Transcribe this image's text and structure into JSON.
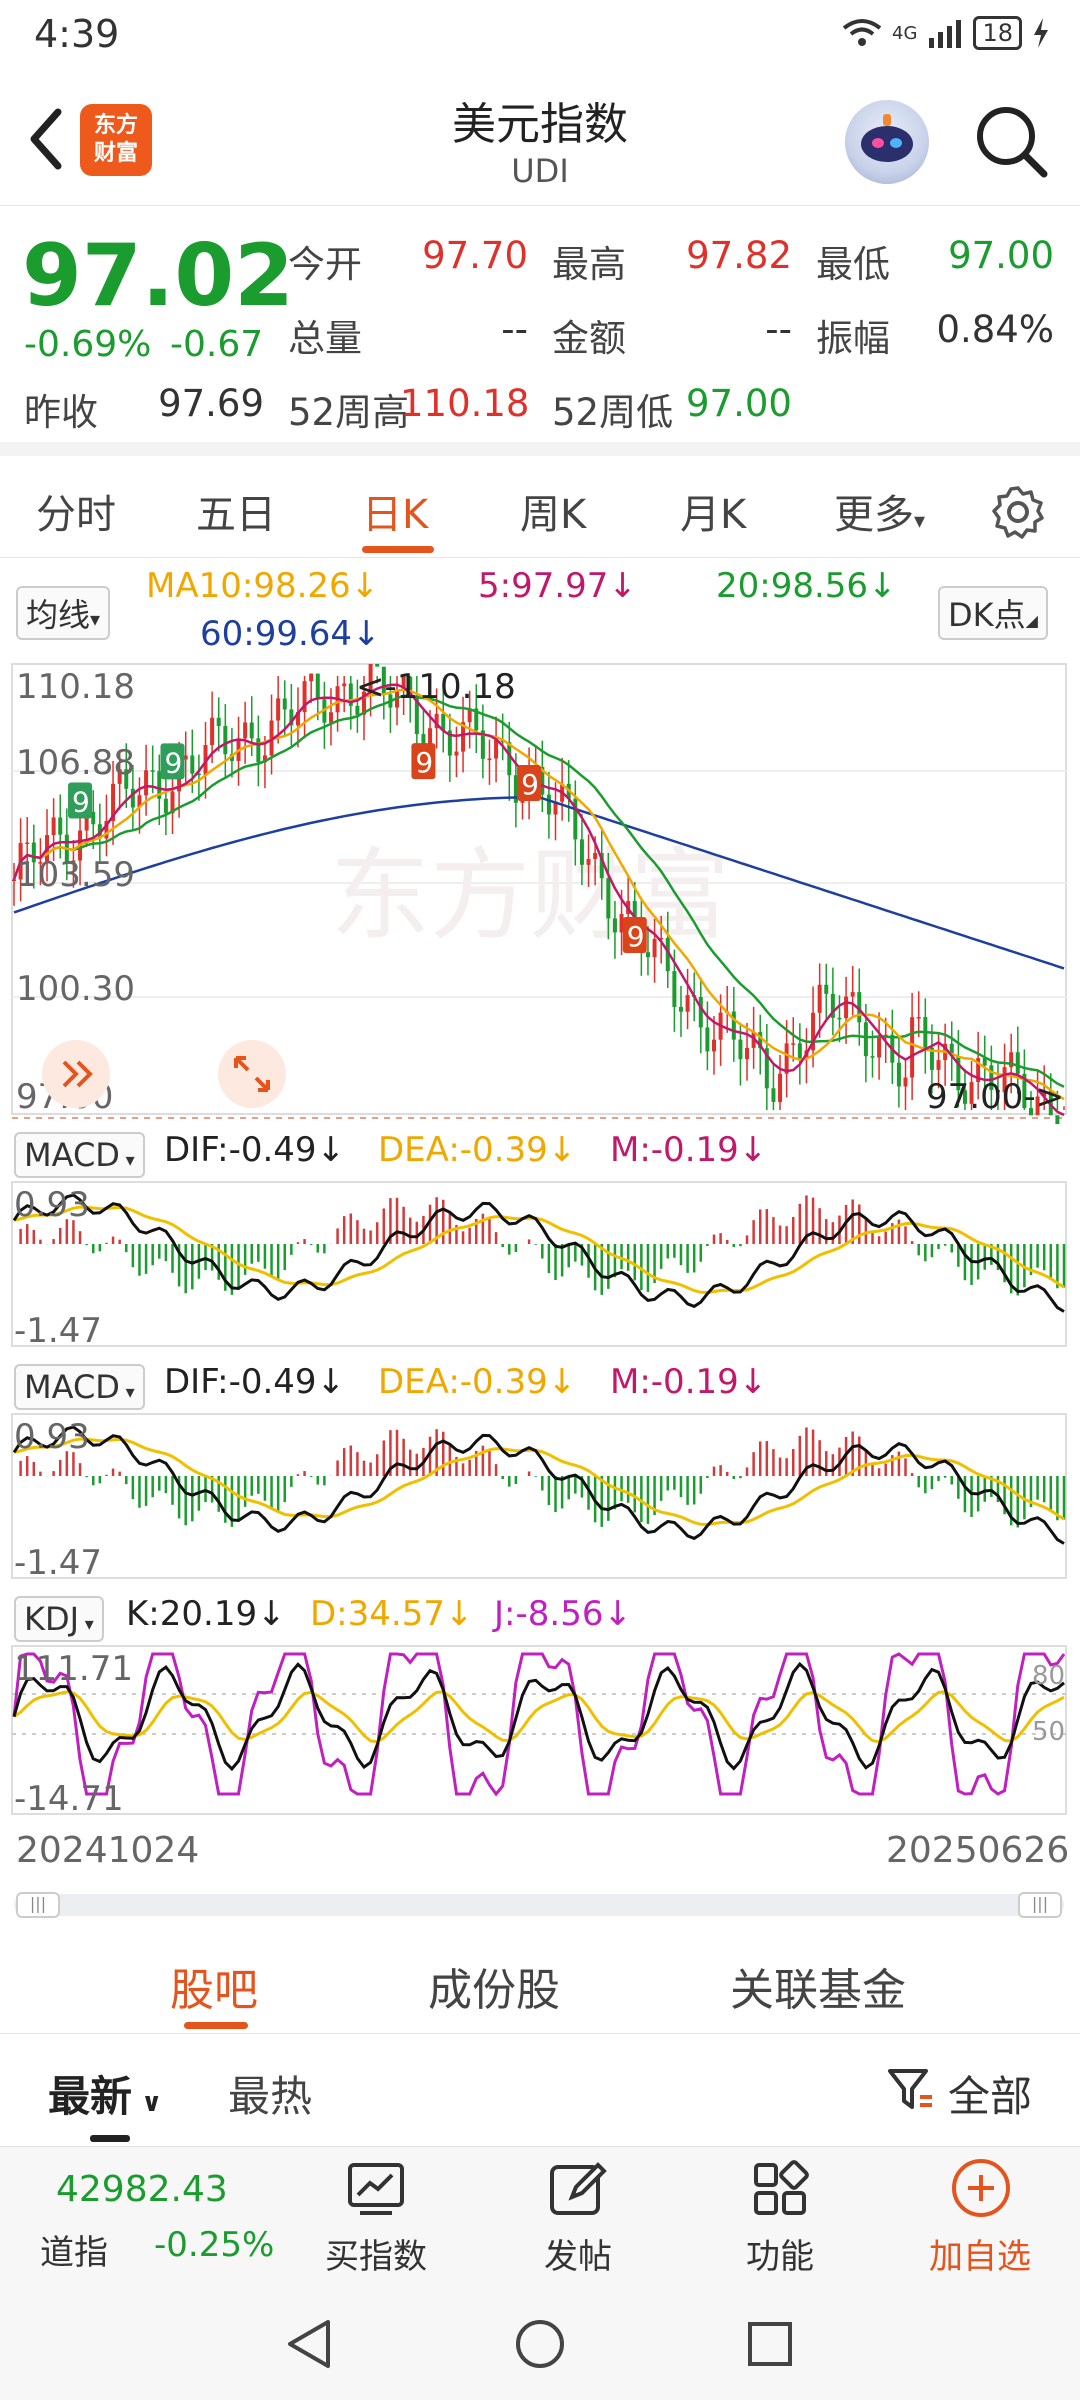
{
  "status": {
    "time": "4:39",
    "network": "4G",
    "battery": "18"
  },
  "header": {
    "title": "美元指数",
    "subtitle": "UDI",
    "logo_line1": "东方",
    "logo_line2": "财富"
  },
  "quote": {
    "price": "97.02",
    "change_pct": "-0.69%",
    "change": "-0.67",
    "prev_close_label": "昨收",
    "prev_close": "97.69",
    "open_label": "今开",
    "open": "97.70",
    "high_label": "最高",
    "high": "97.82",
    "low_label": "最低",
    "low": "97.00",
    "volume_label": "总量",
    "volume": "--",
    "amount_label": "金额",
    "amount": "--",
    "amplitude_label": "振幅",
    "amplitude": "0.84%",
    "w52_high_label": "52周高",
    "w52_high": "110.18",
    "w52_low_label": "52周低",
    "w52_low": "97.00"
  },
  "tabs": {
    "t1": "分时",
    "t2": "五日",
    "t3": "日K",
    "t4": "周K",
    "t5": "月K",
    "t6": "更多"
  },
  "ma": {
    "selector": "均线",
    "ma10": "MA10:98.26",
    "ma5": "5:97.97",
    "ma20": "20:98.56",
    "ma60": "60:99.64",
    "dk": "DK点"
  },
  "main_chart": {
    "y1": "110.18",
    "y2": "106.88",
    "y3": "103.59",
    "y4": "100.30",
    "y5": "97.00",
    "high_tag": "<-110.18",
    "low_tag": "97.00->",
    "watermark": "东方财富"
  },
  "macd": {
    "selector": "MACD",
    "dif": "DIF:-0.49",
    "dea": "DEA:-0.39",
    "m": "M:-0.19",
    "ymax": "0.93",
    "ymin": "-1.47"
  },
  "kdj": {
    "selector": "KDJ",
    "k": "K:20.19",
    "d": "D:34.57",
    "j": "J:-8.56",
    "ymax": "111.71",
    "ymin": "-14.71",
    "l80": "80",
    "l50": "50"
  },
  "dates": {
    "start": "20241024",
    "end": "20250626"
  },
  "bottom_tabs": {
    "t1": "股吧",
    "t2": "成份股",
    "t3": "关联基金"
  },
  "filter": {
    "latest": "最新",
    "hot": "最热",
    "all": "全部"
  },
  "toolbar": {
    "index_value": "42982.43",
    "index_name": "道指",
    "index_change": "-0.25%",
    "buy": "买指数",
    "post": "发帖",
    "func": "功能",
    "add": "加自选"
  },
  "colors": {
    "red": "#e0302a",
    "green": "#1a9c2e",
    "accent": "#e4541c",
    "ma5": "#c2186b",
    "ma10": "#f0a800",
    "ma20": "#1a9c2e",
    "ma60": "#1f3fa0"
  }
}
